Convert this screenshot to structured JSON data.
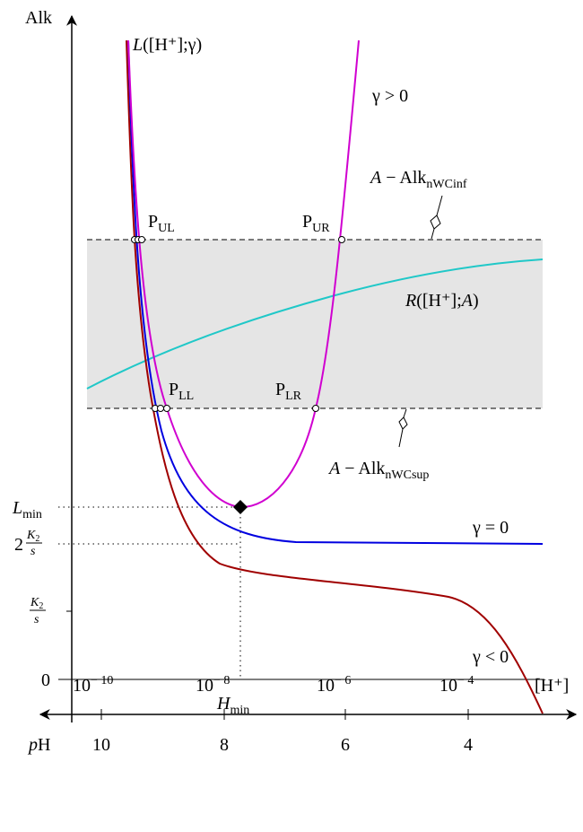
{
  "y_axis_label": "Alk",
  "x_axis_label": "[H⁺]",
  "ph_label": {
    "italic": "p",
    "text": "H"
  },
  "curve_labels": {
    "l": {
      "italic": "L",
      "text": "([H⁺];γ)"
    },
    "r": {
      "italic": "R",
      "text": "([H⁺];",
      "italic2": "A",
      "tail": ")"
    },
    "gamma_pos": "γ > 0",
    "gamma_zero": "γ = 0",
    "gamma_neg": "γ < 0"
  },
  "bound_labels": {
    "upper": {
      "italic": "A",
      "text": " − Alk",
      "sub": "nWCinf"
    },
    "lower": {
      "italic": "A",
      "text": " − Alk",
      "sub": "nWCsup"
    }
  },
  "points": {
    "ul": {
      "text": "P",
      "sub": "UL"
    },
    "ur": {
      "text": "P",
      "sub": "UR"
    },
    "ll": {
      "text": "P",
      "sub": "LL"
    },
    "lr": {
      "text": "P",
      "sub": "LR"
    }
  },
  "y_ticks": {
    "lmin": {
      "italic": "L",
      "sub": "min"
    },
    "two_k2_s": {
      "coef": "2",
      "num": "K",
      "num_sub": "2",
      "den": "s"
    },
    "k2_s": {
      "num": "K",
      "num_sub": "2",
      "den": "s"
    },
    "zero": "0"
  },
  "hmin": {
    "italic": "H",
    "sub": "min"
  },
  "h_ticks": [
    {
      "base": "10",
      "exp": "− 10"
    },
    {
      "base": "10",
      "exp": "− 8"
    },
    {
      "base": "10",
      "exp": "− 6"
    },
    {
      "base": "10",
      "exp": "− 4"
    }
  ],
  "ph_ticks": [
    "10",
    "8",
    "6",
    "4"
  ]
}
